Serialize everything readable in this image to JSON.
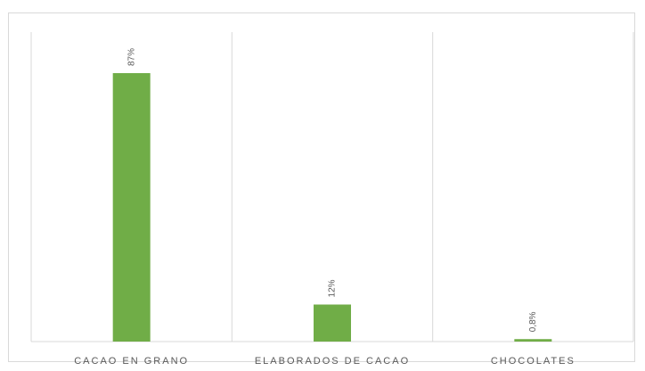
{
  "chart_data": {
    "type": "bar",
    "categories": [
      "CACAO EN GRANO",
      "ELABORADOS DE CACAO",
      "CHOCOLATES"
    ],
    "values": [
      87,
      12,
      0.8
    ],
    "value_labels": [
      "87%",
      "12%",
      "0,8%"
    ],
    "unit": "%",
    "title": "",
    "xlabel": "",
    "ylabel": "",
    "ylim": [
      0,
      100
    ],
    "grid": "vertical category separators",
    "legend": "none",
    "bar_color": "#70ad47",
    "value_label_rotation": "vertical"
  }
}
